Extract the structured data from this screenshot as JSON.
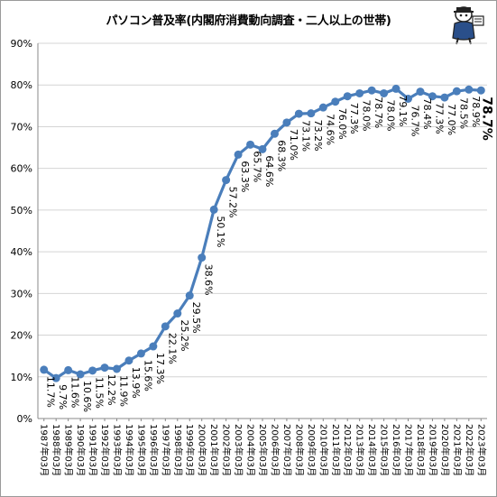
{
  "chart_data": {
    "type": "line",
    "title": "パソコン普及率(内閣府消費動向調査・二人以上の世帯)",
    "xlabel": "",
    "ylabel": "",
    "ylim": [
      0,
      90
    ],
    "yticks": [
      "0%",
      "10%",
      "20%",
      "30%",
      "40%",
      "50%",
      "60%",
      "70%",
      "80%",
      "90%"
    ],
    "grid": true,
    "legend": "none",
    "color": "#4a7ebb",
    "categories": [
      "1987年03月",
      "1988年03月",
      "1989年03月",
      "1990年03月",
      "1991年03月",
      "1992年03月",
      "1993年03月",
      "1994年03月",
      "1995年03月",
      "1996年03月",
      "1997年03月",
      "1998年03月",
      "1999年03月",
      "2000年03月",
      "2001年03月",
      "2002年03月",
      "2003年03月",
      "2004年03月",
      "2005年03月",
      "2006年03月",
      "2007年03月",
      "2008年03月",
      "2009年03月",
      "2010年03月",
      "2011年03月",
      "2012年03月",
      "2013年03月",
      "2014年03月",
      "2015年03月",
      "2016年03月",
      "2017年03月",
      "2018年03月",
      "2019年03月",
      "2020年03月",
      "2021年03月",
      "2022年03月",
      "2023年03月"
    ],
    "values": [
      11.7,
      9.7,
      11.6,
      10.6,
      11.5,
      12.2,
      11.9,
      13.9,
      15.6,
      17.3,
      22.1,
      25.2,
      29.5,
      38.6,
      50.1,
      57.2,
      63.3,
      65.7,
      64.6,
      68.3,
      71.0,
      73.1,
      73.2,
      74.6,
      76.0,
      77.3,
      78.0,
      78.7,
      78.0,
      79.1,
      76.7,
      78.4,
      77.3,
      77.0,
      78.5,
      78.9,
      78.7
    ],
    "data_labels": [
      "11.7%",
      "9.7%",
      "11.6%",
      "10.6%",
      "11.5%",
      "12.2%",
      "11.9%",
      "13.9%",
      "15.6%",
      "17.3%",
      "22.1%",
      "25.2%",
      "29.5%",
      "38.6%",
      "50.1%",
      "57.2%",
      "63.3%",
      "65.7%",
      "64.6%",
      "68.3%",
      "71.0%",
      "73.1%",
      "73.2%",
      "74.6%",
      "76.0%",
      "77.3%",
      "78.0%",
      "78.7%",
      "78.0%",
      "79.1%",
      "76.7%",
      "78.4%",
      "77.3%",
      "77.0%",
      "78.5%",
      "78.9%",
      "78.7%"
    ]
  }
}
